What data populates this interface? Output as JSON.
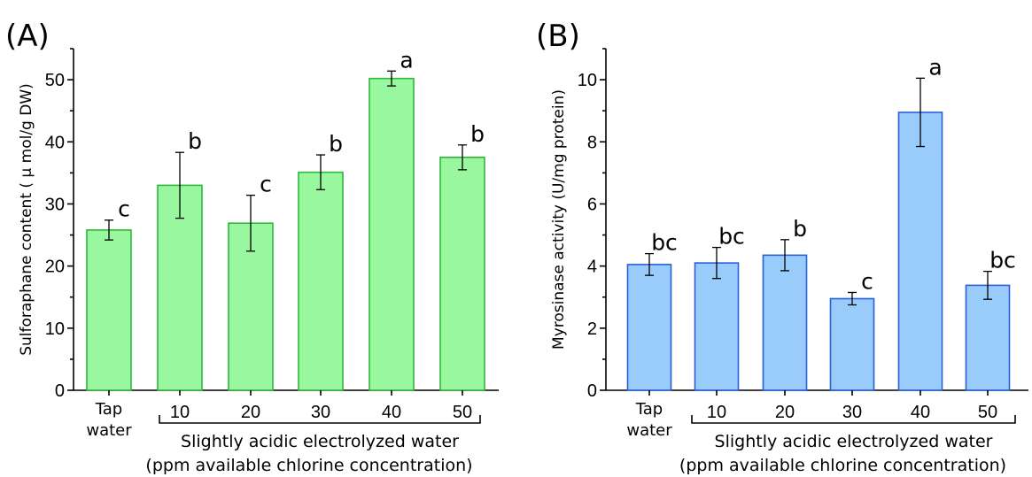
{
  "chart_data": [
    {
      "type": "bar",
      "panel_label": "(A)",
      "categories": [
        {
          "line1": "Tap",
          "line2": "water"
        },
        {
          "line1": "10",
          "line2": ""
        },
        {
          "line1": "20",
          "line2": ""
        },
        {
          "line1": "30",
          "line2": ""
        },
        {
          "line1": "40",
          "line2": ""
        },
        {
          "line1": "50",
          "line2": ""
        }
      ],
      "values": [
        25.8,
        33.0,
        26.9,
        35.1,
        50.2,
        37.5
      ],
      "errors": [
        1.6,
        5.3,
        4.5,
        2.8,
        1.2,
        2.0
      ],
      "significance": [
        "c",
        "b",
        "c",
        "b",
        "a",
        "b"
      ],
      "ylabel": "Sulforaphane content ( μ mol/g DW)",
      "ylim": [
        0,
        55
      ],
      "yticks": [
        0,
        10,
        20,
        30,
        40,
        50
      ],
      "bar_fill": "#99f79f",
      "bar_stroke": "#2fb83a",
      "xlabel_line1": "Slightly acidic electrolyzed water",
      "xlabel_line2": "(ppm available chlorine concentration)"
    },
    {
      "type": "bar",
      "panel_label": "(B)",
      "categories": [
        {
          "line1": "Tap",
          "line2": "water"
        },
        {
          "line1": "10",
          "line2": ""
        },
        {
          "line1": "20",
          "line2": ""
        },
        {
          "line1": "30",
          "line2": ""
        },
        {
          "line1": "40",
          "line2": ""
        },
        {
          "line1": "50",
          "line2": ""
        }
      ],
      "values": [
        4.05,
        4.1,
        4.35,
        2.95,
        8.95,
        3.38
      ],
      "errors": [
        0.35,
        0.5,
        0.5,
        0.2,
        1.1,
        0.45
      ],
      "significance": [
        "bc",
        "bc",
        "b",
        "c",
        "a",
        "bc"
      ],
      "ylabel": "Myrosinase activity (U/mg protein)",
      "ylim": [
        0,
        11
      ],
      "yticks": [
        0,
        2,
        4,
        6,
        8,
        10
      ],
      "bar_fill": "#99ccfb",
      "bar_stroke": "#2a5fd6",
      "xlabel_line1": "Slightly acidic electrolyzed water",
      "xlabel_line2": "(ppm available chlorine concentration)"
    }
  ]
}
